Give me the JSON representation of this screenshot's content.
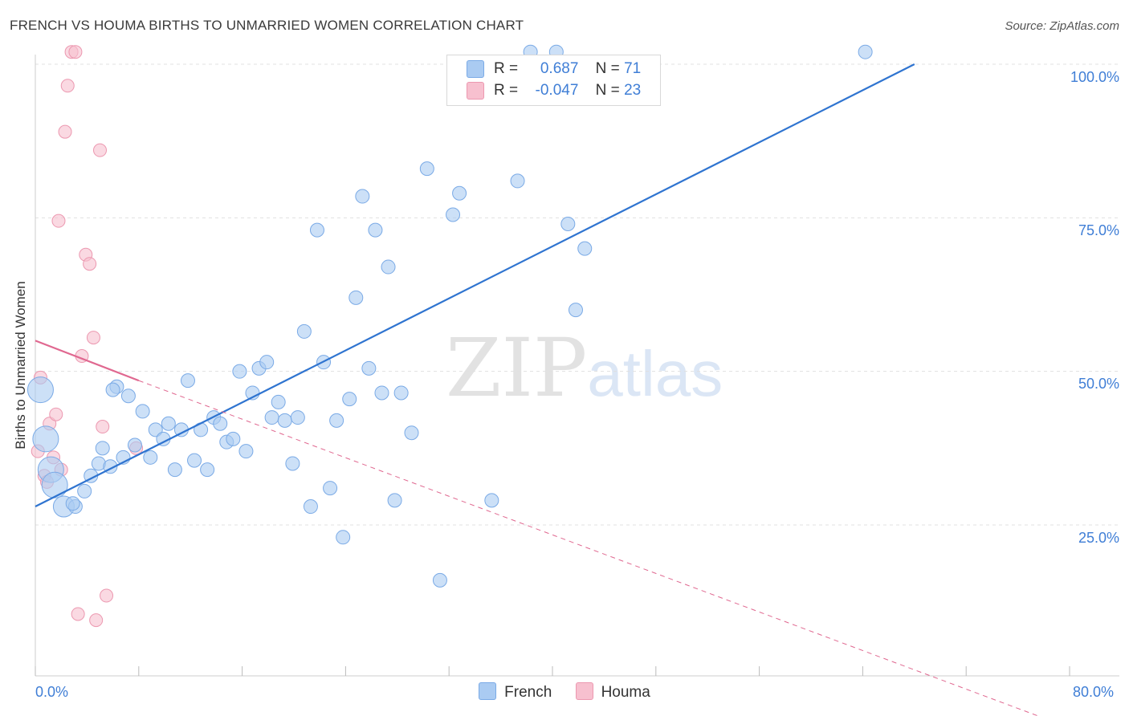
{
  "title": "FRENCH VS HOUMA BIRTHS TO UNMARRIED WOMEN CORRELATION CHART",
  "source": "Source: ZipAtlas.com",
  "watermark": {
    "zip": "ZIP",
    "atlas": "atlas"
  },
  "legend": {
    "rows": [
      {
        "r_label": "R =",
        "r_value": "0.687",
        "n_label": "N =",
        "n_value": "71"
      },
      {
        "r_label": "R =",
        "r_value": "-0.047",
        "n_label": "N =",
        "n_value": "23"
      }
    ]
  },
  "bottom_legend": {
    "french": "French",
    "houma": "Houma"
  },
  "colors": {
    "french_fill": "#aacbf2",
    "french_stroke": "#7aaae6",
    "french_line": "#2f74d0",
    "houma_fill": "#f7c0cf",
    "houma_stroke": "#ec98b0",
    "houma_line": "#e06890",
    "grid": "#e0e0e0",
    "tick_text": "#3f7ed6"
  },
  "chart_data": {
    "type": "scatter",
    "title": "FRENCH VS HOUMA BIRTHS TO UNMARRIED WOMEN CORRELATION CHART",
    "xlabel": "",
    "ylabel": "Births to Unmarried Women",
    "xlim": [
      0,
      80
    ],
    "ylim": [
      0,
      105
    ],
    "x_tick_labels": [
      "0.0%",
      "80.0%"
    ],
    "y_ticks": [
      25,
      50,
      75,
      100
    ],
    "y_tick_labels": [
      "25.0%",
      "50.0%",
      "75.0%",
      "100.0%"
    ],
    "legend_position": "bottom-center",
    "series": [
      {
        "name": "French",
        "r": 0.687,
        "n": 71,
        "trend": {
          "x": [
            0,
            68
          ],
          "y": [
            28,
            100
          ]
        },
        "points": [
          {
            "x": 0.4,
            "y": 47.0,
            "s": 3
          },
          {
            "x": 0.8,
            "y": 39.0,
            "s": 3
          },
          {
            "x": 1.2,
            "y": 34.0,
            "s": 3
          },
          {
            "x": 1.5,
            "y": 31.5,
            "s": 3
          },
          {
            "x": 2.2,
            "y": 28.0,
            "s": 2
          },
          {
            "x": 3.1,
            "y": 28.0,
            "s": 1
          },
          {
            "x": 3.8,
            "y": 30.5,
            "s": 1
          },
          {
            "x": 4.3,
            "y": 33.0,
            "s": 1
          },
          {
            "x": 4.9,
            "y": 35.0,
            "s": 1
          },
          {
            "x": 5.2,
            "y": 37.5,
            "s": 1
          },
          {
            "x": 5.8,
            "y": 34.5,
            "s": 1
          },
          {
            "x": 6.3,
            "y": 47.5,
            "s": 1
          },
          {
            "x": 6.8,
            "y": 36.0,
            "s": 1
          },
          {
            "x": 7.2,
            "y": 46.0,
            "s": 1
          },
          {
            "x": 7.7,
            "y": 38.0,
            "s": 1
          },
          {
            "x": 8.3,
            "y": 43.5,
            "s": 1
          },
          {
            "x": 8.9,
            "y": 36.0,
            "s": 1
          },
          {
            "x": 9.3,
            "y": 40.5,
            "s": 1
          },
          {
            "x": 9.9,
            "y": 39.0,
            "s": 1
          },
          {
            "x": 10.3,
            "y": 41.5,
            "s": 1
          },
          {
            "x": 10.8,
            "y": 34.0,
            "s": 1
          },
          {
            "x": 11.3,
            "y": 40.5,
            "s": 1
          },
          {
            "x": 11.8,
            "y": 48.5,
            "s": 1
          },
          {
            "x": 12.3,
            "y": 35.5,
            "s": 1
          },
          {
            "x": 12.8,
            "y": 40.5,
            "s": 1
          },
          {
            "x": 13.3,
            "y": 34.0,
            "s": 1
          },
          {
            "x": 13.8,
            "y": 42.5,
            "s": 1
          },
          {
            "x": 14.3,
            "y": 41.5,
            "s": 1
          },
          {
            "x": 14.8,
            "y": 38.5,
            "s": 1
          },
          {
            "x": 15.3,
            "y": 39.0,
            "s": 1
          },
          {
            "x": 15.8,
            "y": 50.0,
            "s": 1
          },
          {
            "x": 16.3,
            "y": 37.0,
            "s": 1
          },
          {
            "x": 16.8,
            "y": 46.5,
            "s": 1
          },
          {
            "x": 17.3,
            "y": 50.5,
            "s": 1
          },
          {
            "x": 17.9,
            "y": 51.5,
            "s": 1
          },
          {
            "x": 18.3,
            "y": 42.5,
            "s": 1
          },
          {
            "x": 18.8,
            "y": 45.0,
            "s": 1
          },
          {
            "x": 19.3,
            "y": 42.0,
            "s": 1
          },
          {
            "x": 19.9,
            "y": 35.0,
            "s": 1
          },
          {
            "x": 20.3,
            "y": 42.5,
            "s": 1
          },
          {
            "x": 20.8,
            "y": 56.5,
            "s": 1
          },
          {
            "x": 21.3,
            "y": 28.0,
            "s": 1
          },
          {
            "x": 21.8,
            "y": 73.0,
            "s": 1
          },
          {
            "x": 22.3,
            "y": 51.5,
            "s": 1
          },
          {
            "x": 22.8,
            "y": 31.0,
            "s": 1
          },
          {
            "x": 23.3,
            "y": 42.0,
            "s": 1
          },
          {
            "x": 23.8,
            "y": 23.0,
            "s": 1
          },
          {
            "x": 24.3,
            "y": 45.5,
            "s": 1
          },
          {
            "x": 24.8,
            "y": 62.0,
            "s": 1
          },
          {
            "x": 25.3,
            "y": 78.5,
            "s": 1
          },
          {
            "x": 25.8,
            "y": 50.5,
            "s": 1
          },
          {
            "x": 26.3,
            "y": 73.0,
            "s": 1
          },
          {
            "x": 26.8,
            "y": 46.5,
            "s": 1
          },
          {
            "x": 27.3,
            "y": 67.0,
            "s": 1
          },
          {
            "x": 27.8,
            "y": 29.0,
            "s": 1
          },
          {
            "x": 28.3,
            "y": 46.5,
            "s": 1
          },
          {
            "x": 29.1,
            "y": 40.0,
            "s": 1
          },
          {
            "x": 30.3,
            "y": 83.0,
            "s": 1
          },
          {
            "x": 31.3,
            "y": 16.0,
            "s": 1
          },
          {
            "x": 32.3,
            "y": 75.5,
            "s": 1
          },
          {
            "x": 32.8,
            "y": 79.0,
            "s": 1
          },
          {
            "x": 35.3,
            "y": 29.0,
            "s": 1
          },
          {
            "x": 37.3,
            "y": 81.0,
            "s": 1
          },
          {
            "x": 38.3,
            "y": 102.0,
            "s": 1
          },
          {
            "x": 40.3,
            "y": 102.0,
            "s": 1
          },
          {
            "x": 41.2,
            "y": 74.0,
            "s": 1
          },
          {
            "x": 41.8,
            "y": 60.0,
            "s": 1
          },
          {
            "x": 42.5,
            "y": 70.0,
            "s": 1
          },
          {
            "x": 64.2,
            "y": 102.0,
            "s": 1
          },
          {
            "x": 2.9,
            "y": 28.5,
            "s": 1
          },
          {
            "x": 6.0,
            "y": 47.0,
            "s": 1
          }
        ]
      },
      {
        "name": "Houma",
        "r": -0.047,
        "n": 23,
        "trend_solid": {
          "x": [
            0,
            8
          ],
          "y": [
            55,
            48.5
          ]
        },
        "trend_dashed": {
          "x": [
            8,
            80
          ],
          "y": [
            48.5,
            -8
          ]
        },
        "points": [
          {
            "x": 0.2,
            "y": 37.0,
            "s": 1
          },
          {
            "x": 0.4,
            "y": 49.0,
            "s": 1
          },
          {
            "x": 0.7,
            "y": 33.0,
            "s": 1
          },
          {
            "x": 0.9,
            "y": 32.0,
            "s": 1
          },
          {
            "x": 1.1,
            "y": 41.5,
            "s": 1
          },
          {
            "x": 1.4,
            "y": 36.0,
            "s": 1
          },
          {
            "x": 1.6,
            "y": 43.0,
            "s": 1
          },
          {
            "x": 1.8,
            "y": 74.5,
            "s": 1
          },
          {
            "x": 2.0,
            "y": 34.0,
            "s": 1
          },
          {
            "x": 2.3,
            "y": 89.0,
            "s": 1
          },
          {
            "x": 2.5,
            "y": 96.5,
            "s": 1
          },
          {
            "x": 2.8,
            "y": 102.0,
            "s": 1
          },
          {
            "x": 3.1,
            "y": 102.0,
            "s": 1
          },
          {
            "x": 3.3,
            "y": 10.5,
            "s": 1
          },
          {
            "x": 3.6,
            "y": 52.5,
            "s": 1
          },
          {
            "x": 3.9,
            "y": 69.0,
            "s": 1
          },
          {
            "x": 4.2,
            "y": 67.5,
            "s": 1
          },
          {
            "x": 4.5,
            "y": 55.5,
            "s": 1
          },
          {
            "x": 4.7,
            "y": 9.5,
            "s": 1
          },
          {
            "x": 5.0,
            "y": 86.0,
            "s": 1
          },
          {
            "x": 5.2,
            "y": 41.0,
            "s": 1
          },
          {
            "x": 5.5,
            "y": 13.5,
            "s": 1
          },
          {
            "x": 7.8,
            "y": 37.5,
            "s": 1
          }
        ]
      }
    ]
  }
}
